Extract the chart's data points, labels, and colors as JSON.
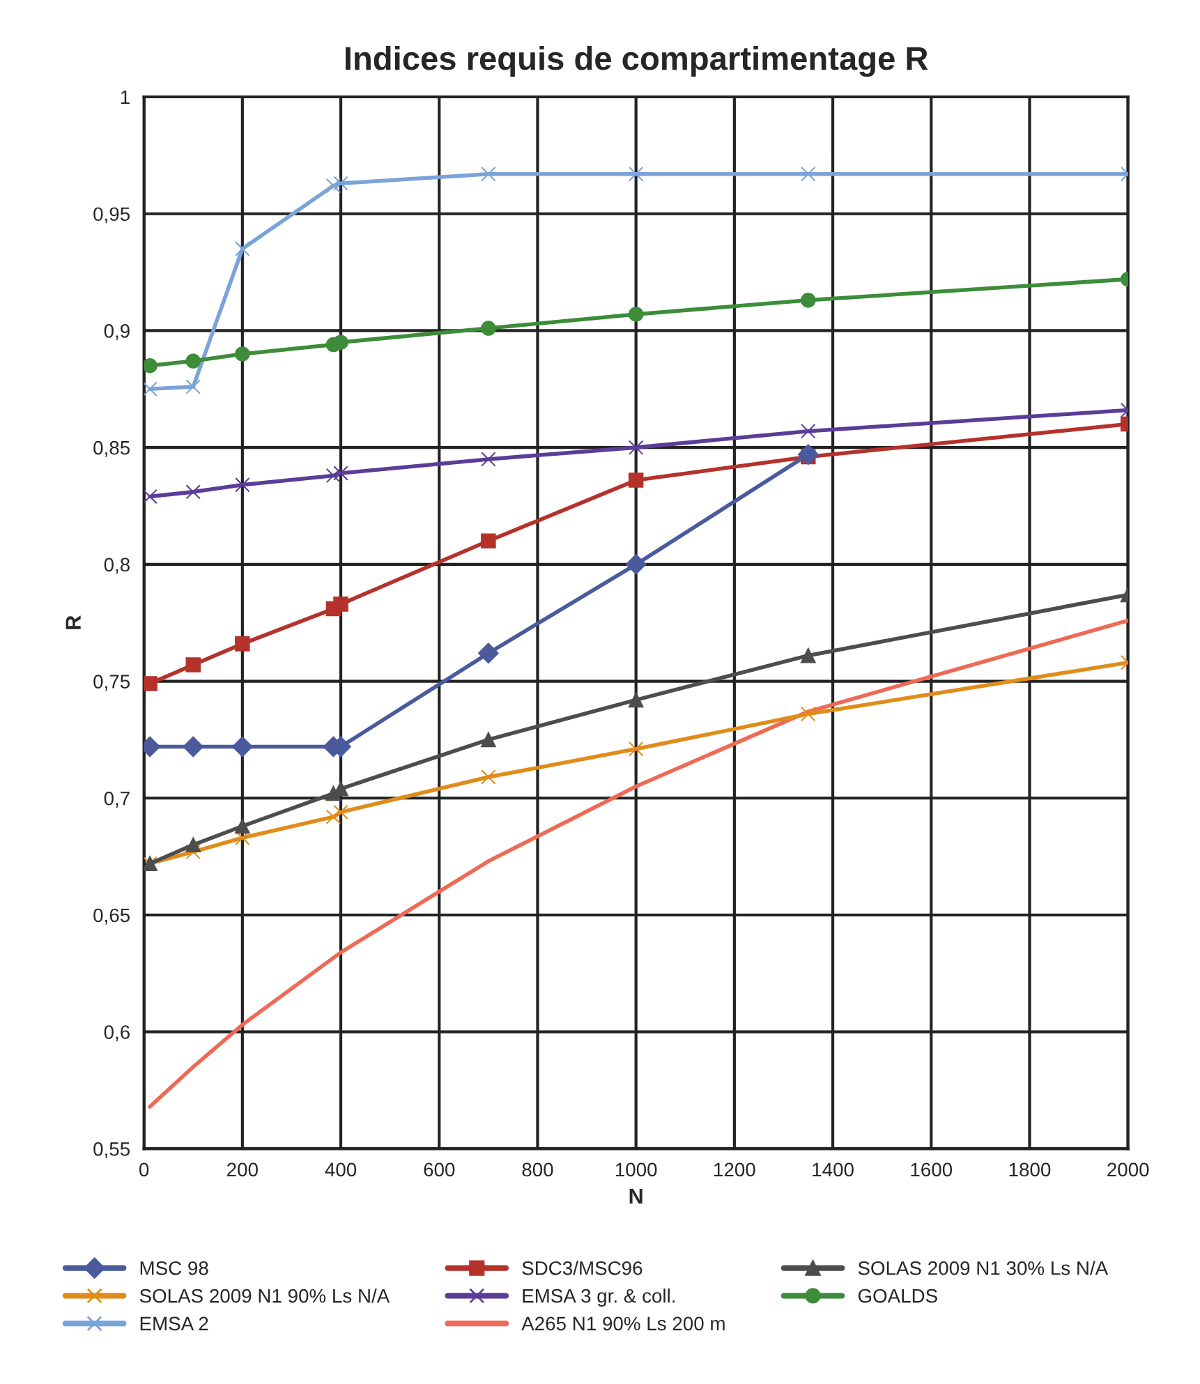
{
  "chart_data": {
    "type": "line",
    "title": "Indices requis de compartimentage R",
    "xlabel": "N",
    "ylabel": "R",
    "x": [
      12,
      100,
      200,
      385,
      400,
      700,
      1000,
      1350,
      2000
    ],
    "xlim": [
      0,
      2000
    ],
    "xticks": [
      0,
      200,
      400,
      600,
      800,
      1000,
      1200,
      1400,
      1600,
      1800,
      2000
    ],
    "ylim": [
      0.55,
      1
    ],
    "yticks": [
      {
        "value": 0.55,
        "label": "0,55"
      },
      {
        "value": 0.6,
        "label": "0,6"
      },
      {
        "value": 0.65,
        "label": "0,65"
      },
      {
        "value": 0.7,
        "label": "0,7"
      },
      {
        "value": 0.75,
        "label": "0,75"
      },
      {
        "value": 0.8,
        "label": "0,8"
      },
      {
        "value": 0.85,
        "label": "0,85"
      },
      {
        "value": 0.9,
        "label": "0,9"
      },
      {
        "value": 0.95,
        "label": "0,95"
      },
      {
        "value": 1,
        "label": "1"
      }
    ],
    "grid": true,
    "legend": "bottom",
    "series": [
      {
        "name": "MSC 98",
        "color": "#4a5a9c",
        "marker": "diamond",
        "values": [
          0.722,
          0.722,
          0.722,
          0.722,
          0.722,
          0.762,
          0.8,
          0.847,
          null
        ]
      },
      {
        "name": "SDC3/MSC96",
        "color": "#b5322b",
        "marker": "square",
        "values": [
          0.749,
          0.757,
          0.766,
          0.781,
          0.783,
          0.81,
          0.836,
          0.846,
          0.86
        ]
      },
      {
        "name": "SOLAS 2009 N1 30% Ls N/A",
        "color": "#4d4d4d",
        "marker": "triangle",
        "values": [
          0.672,
          0.68,
          0.688,
          0.702,
          0.704,
          0.725,
          0.742,
          0.761,
          0.787
        ]
      },
      {
        "name": "SOLAS 2009 N1 90% Ls N/A",
        "color": "#e08c1a",
        "marker": "cross",
        "values": [
          0.672,
          0.677,
          0.683,
          0.692,
          0.694,
          0.709,
          0.721,
          0.736,
          0.758
        ]
      },
      {
        "name": "EMSA 3 gr. & coll.",
        "color": "#5b3d99",
        "marker": "cross",
        "values": [
          0.829,
          0.831,
          0.834,
          0.838,
          0.839,
          0.845,
          0.85,
          0.857,
          0.866
        ]
      },
      {
        "name": "GOALDS",
        "color": "#3d8c3a",
        "marker": "circle",
        "values": [
          0.885,
          0.887,
          0.89,
          0.894,
          0.895,
          0.901,
          0.907,
          0.913,
          0.922
        ]
      },
      {
        "name": "EMSA 2",
        "color": "#7aa3d9",
        "marker": "cross",
        "values": [
          0.875,
          0.876,
          0.935,
          0.962,
          0.963,
          0.967,
          0.967,
          0.967,
          0.967
        ]
      },
      {
        "name": "A265 N1 90% Ls 200 m",
        "color": "#ee6a55",
        "marker": "none",
        "values": [
          0.568,
          0.585,
          0.603,
          null,
          0.634,
          0.673,
          0.705,
          0.737,
          0.776
        ]
      }
    ]
  }
}
